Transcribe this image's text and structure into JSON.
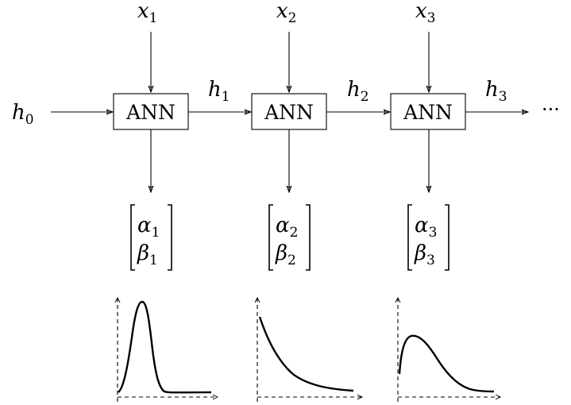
{
  "inputs": [
    {
      "symbol": "x",
      "sub": "1"
    },
    {
      "symbol": "x",
      "sub": "2"
    },
    {
      "symbol": "x",
      "sub": "3"
    }
  ],
  "hidden": [
    {
      "symbol": "h",
      "sub": "0"
    },
    {
      "symbol": "h",
      "sub": "1"
    },
    {
      "symbol": "h",
      "sub": "2"
    },
    {
      "symbol": "h",
      "sub": "3"
    }
  ],
  "cells": [
    {
      "label": "ANN"
    },
    {
      "label": "ANN"
    },
    {
      "label": "ANN"
    }
  ],
  "outputs": [
    {
      "alpha": "α",
      "alpha_sub": "1",
      "beta": "β",
      "beta_sub": "1"
    },
    {
      "alpha": "α",
      "alpha_sub": "2",
      "beta": "β",
      "beta_sub": "2"
    },
    {
      "alpha": "α",
      "alpha_sub": "3",
      "beta": "β",
      "beta_sub": "3"
    }
  ],
  "continuation": "···",
  "distribution_plots": [
    {
      "shape": "sharp-peak"
    },
    {
      "shape": "decaying"
    },
    {
      "shape": "skewed-hump"
    }
  ]
}
